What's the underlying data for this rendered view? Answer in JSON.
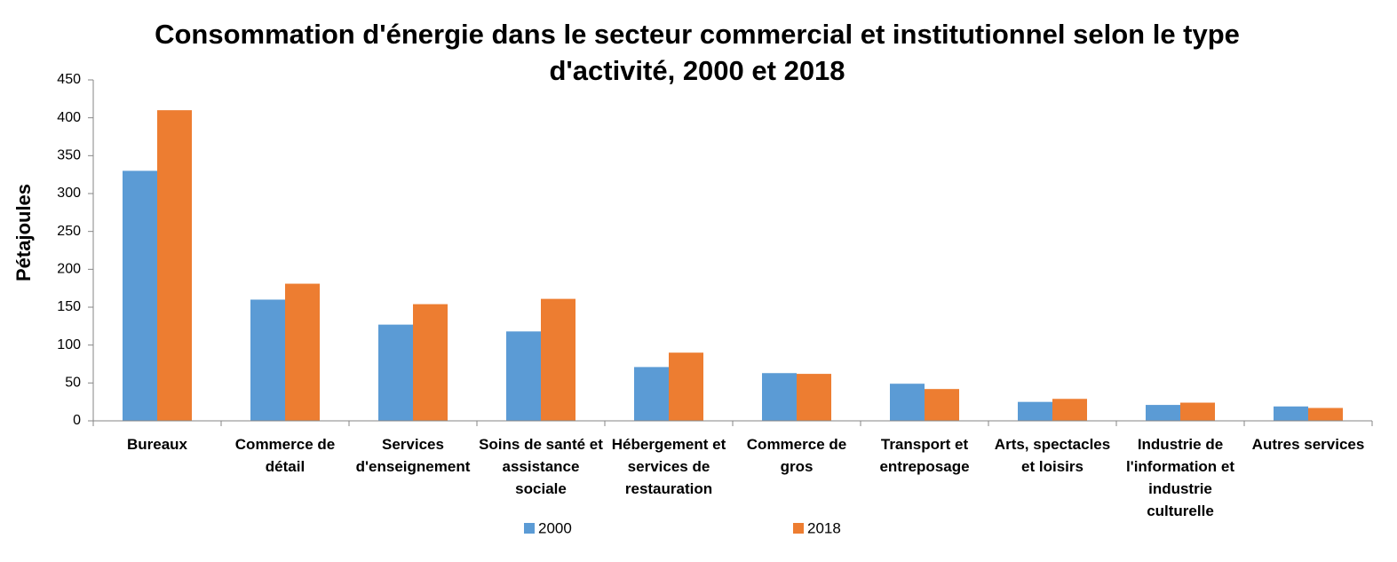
{
  "chart_data": {
    "type": "bar",
    "title": "Consommation d'énergie dans le secteur commercial et institutionnel selon le type d'activité, 2000 et 2018",
    "y_label": "Pétajoules",
    "categories": [
      "Bureaux",
      "Commerce de détail",
      "Services d'enseignement",
      "Soins de santé et assistance sociale",
      "Hébergement et services de restauration",
      "Commerce de gros",
      "Transport et entreposage",
      "Arts, spectacles et loisirs",
      "Industrie de l'information et industrie culturelle",
      "Autres services"
    ],
    "series": [
      {
        "name": "2000",
        "color": "#5b9bd5",
        "values": [
          330,
          160,
          127,
          118,
          71,
          63,
          49,
          25,
          21,
          19
        ]
      },
      {
        "name": "2018",
        "color": "#ed7d31",
        "values": [
          410,
          181,
          154,
          161,
          90,
          62,
          42,
          29,
          24,
          17
        ]
      }
    ],
    "ylim": [
      0,
      450
    ],
    "yticks": [
      0,
      50,
      100,
      150,
      200,
      250,
      300,
      350,
      400,
      450
    ],
    "grid": false,
    "legend": "bottom"
  }
}
